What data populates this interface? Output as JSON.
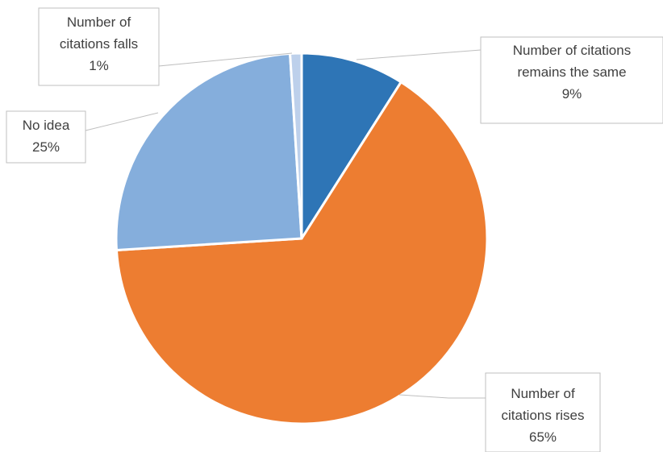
{
  "chart_data": {
    "type": "pie",
    "title": "",
    "start_angle_deg": 0,
    "direction": "clockwise",
    "legend": "none",
    "slices": [
      {
        "label_lines": [
          "Number of citations",
          "remains the same"
        ],
        "value": 9,
        "value_label": "9%",
        "color": "#2e75b6"
      },
      {
        "label_lines": [
          "Number of",
          "citations rises"
        ],
        "value": 65,
        "value_label": "65%",
        "color": "#ed7d31"
      },
      {
        "label_lines": [
          "No idea"
        ],
        "value": 25,
        "value_label": "25%",
        "color": "#85aedc"
      },
      {
        "label_lines": [
          "Number of",
          "citations falls"
        ],
        "value": 1,
        "value_label": "1%",
        "color": "#bdd0eb"
      }
    ]
  }
}
